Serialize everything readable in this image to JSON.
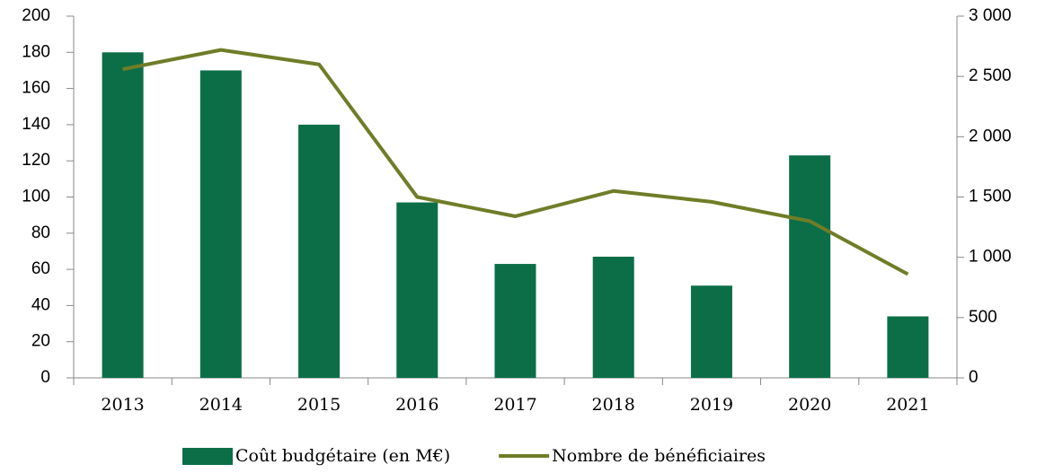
{
  "chart_data": {
    "type": "bar",
    "categories": [
      "2013",
      "2014",
      "2015",
      "2016",
      "2017",
      "2018",
      "2019",
      "2020",
      "2021"
    ],
    "series": [
      {
        "name": "Coût budgétaire (en M€)",
        "type": "bar",
        "color": "#0b6e47",
        "values": [
          180,
          170,
          140,
          97,
          63,
          67,
          51,
          123,
          34
        ]
      },
      {
        "name": "Nombre de bénéficiaires",
        "type": "line",
        "axis": "y2",
        "color": "#6f7d28",
        "values": [
          2560,
          2720,
          2600,
          1500,
          1340,
          1550,
          1460,
          1300,
          860
        ]
      }
    ],
    "ylim": [
      0,
      200
    ],
    "yticks": [
      0,
      20,
      40,
      60,
      80,
      100,
      120,
      140,
      160,
      180,
      200
    ],
    "y2lim": [
      0,
      3000
    ],
    "y2ticks": [
      0,
      500,
      {
        "value": 1000,
        "label": "1 000"
      },
      {
        "value": 1500,
        "label": "1 500"
      },
      {
        "value": 2000,
        "label": "2 000"
      },
      {
        "value": 2500,
        "label": "2 500"
      },
      {
        "value": 3000,
        "label": "3 000"
      }
    ],
    "grid": false
  }
}
